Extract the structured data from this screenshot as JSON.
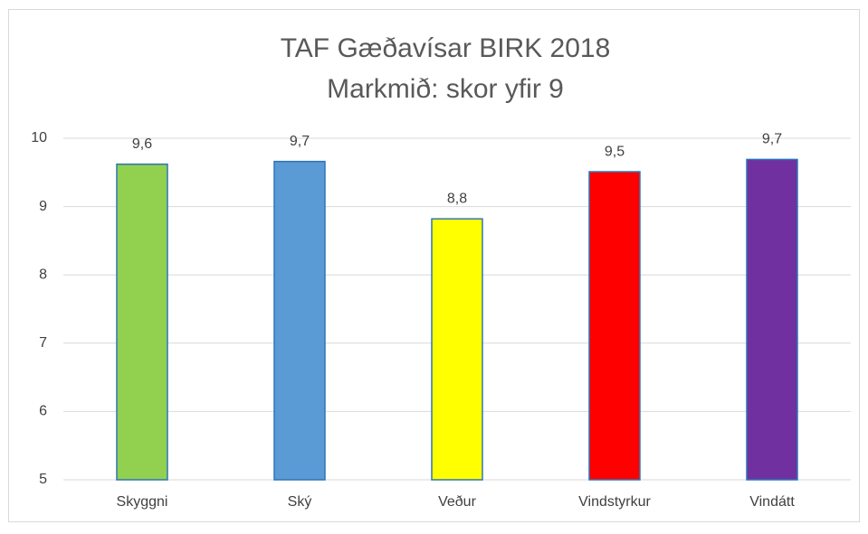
{
  "chart_data": {
    "type": "bar",
    "title": "TAF Gæðavísar BIRK 2018",
    "subtitle": "Markmið: skor yfir 9",
    "categories": [
      "Skyggni",
      "Ský",
      "Veður",
      "Vindstyrkur",
      "Vindátt"
    ],
    "values": [
      9.62,
      9.66,
      8.82,
      9.51,
      9.69
    ],
    "value_labels": [
      "9,6",
      "9,7",
      "8,8",
      "9,5",
      "9,7"
    ],
    "colors": [
      "#92d050",
      "#5b9bd5",
      "#ffff00",
      "#ff0000",
      "#7030a0"
    ],
    "ylim": [
      5,
      10
    ],
    "yticks": [
      5,
      6,
      7,
      8,
      9,
      10
    ],
    "grid": true
  }
}
